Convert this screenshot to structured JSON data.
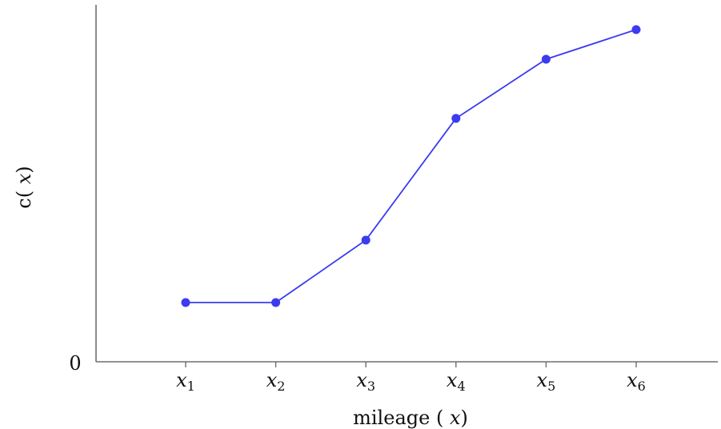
{
  "chart_data": {
    "type": "line",
    "xlabel": "mileage (x)",
    "ylabel": "c(x)",
    "y_origin_label": "0",
    "categories": [
      "x1",
      "x2",
      "x3",
      "x4",
      "x5",
      "x6"
    ],
    "category_labels": [
      {
        "base": "x",
        "sub": "1"
      },
      {
        "base": "x",
        "sub": "2"
      },
      {
        "base": "x",
        "sub": "3"
      },
      {
        "base": "x",
        "sub": "4"
      },
      {
        "base": "x",
        "sub": "5"
      },
      {
        "base": "x",
        "sub": "6"
      }
    ],
    "series": [
      {
        "values": [
          0.18,
          0.18,
          0.37,
          0.74,
          0.92,
          1.01
        ],
        "color": "#3b3bf0"
      }
    ],
    "ylim": [
      0,
      1.1
    ],
    "grid": false,
    "legend": "none",
    "y_tick_labels_shown": false
  }
}
